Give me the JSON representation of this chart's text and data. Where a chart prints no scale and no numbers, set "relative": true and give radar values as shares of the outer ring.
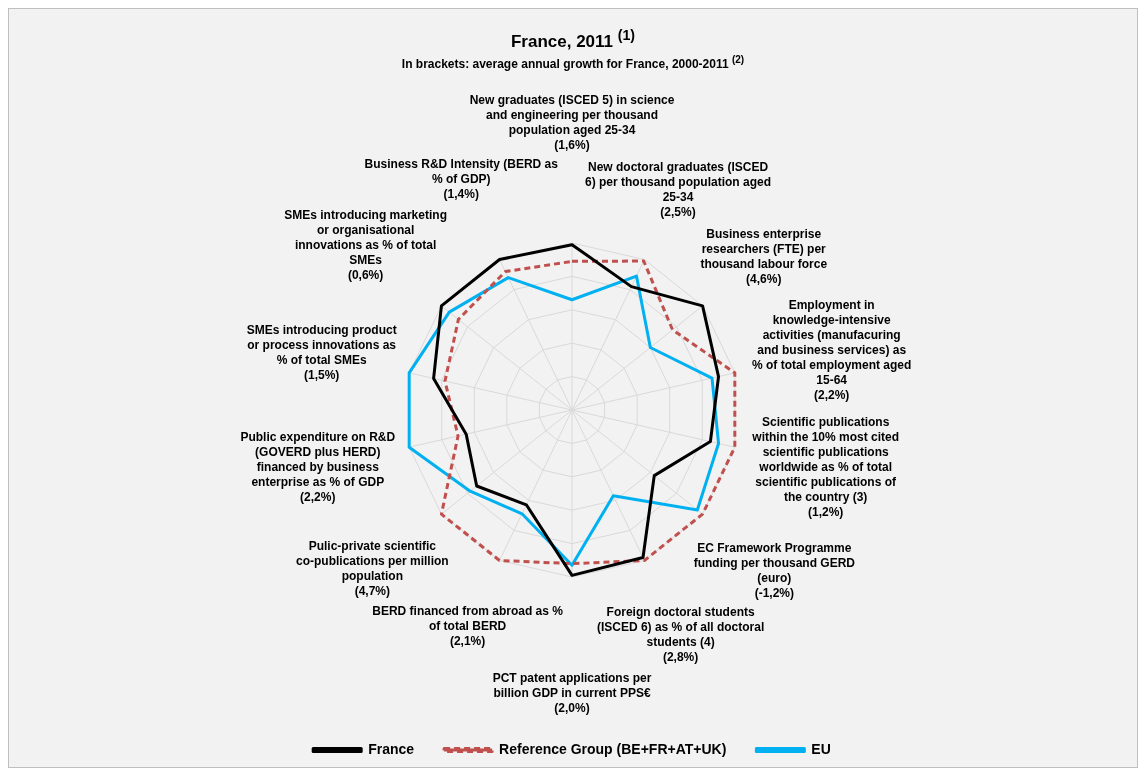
{
  "chart_data": {
    "type": "radar",
    "title": "France, 2011 $^{(1)}$",
    "subtitle": "In brackets: average annual growth for France, 2000-2011 $^{(2)}$",
    "relative": true,
    "grid": true,
    "legend": "bottom",
    "marker": "none",
    "categories": [
      "New graduates (ISCED 5) in science and engineering per thousand population aged 25-34 (1,6%)",
      "New doctoral graduates (ISCED 6) per thousand population aged 25-34 (2,5%)",
      "Business enterprise researchers (FTE) per thousand labour force (4,6%)",
      "Employment in knowledge-intensive activities (manufacuring and business services) as % of total employment aged 15-64 (2,2%)",
      "Scientific publications within the 10% most cited scientific publications worldwide as % of total scientific publications of the country (3) (1,2%)",
      "EC Framework Programme funding per thousand GERD (euro) (-1,2%)",
      "Foreign doctoral students (ISCED 6) as % of all doctoral students (4) (2,8%)",
      "PCT patent applications per billion GDP in current PPS€ (2,0%)",
      "BERD financed from abroad as % of total BERD (2,1%)",
      "Pulic-private scientific co-publications per million population (4,7%)",
      "Public expenditure on R&D (GOVERD plus HERD) financed by business enterprise as % of GDP (2,2%)",
      "SMEs introducing product or process innovations as % of total SMEs (1,5%)",
      "SMEs introducing marketing or organisational innovations as % of total SMEs (0,6%)",
      "Business R&D Intensity (BERD as % of GDP) (1,4%)"
    ],
    "series": [
      {
        "name": "France",
        "color": "#000000",
        "line_style": "solid",
        "values": [
          0.99,
          0.82,
          1.0,
          0.9,
          0.85,
          0.63,
          0.98,
          0.99,
          0.63,
          0.73,
          0.65,
          0.85,
          1.0,
          1.0
        ]
      },
      {
        "name": "Reference Group (BE+FR+AT+UK)",
        "color": "#c0504d",
        "line_style": "dashed",
        "values": [
          0.89,
          0.99,
          0.77,
          1.0,
          1.0,
          1.0,
          1.0,
          0.92,
          1.0,
          1.0,
          0.7,
          0.78,
          0.87,
          0.92
        ]
      },
      {
        "name": "EU",
        "color": "#00b0f0",
        "line_style": "solid",
        "values": [
          0.66,
          0.89,
          0.6,
          0.86,
          0.9,
          0.96,
          0.57,
          0.93,
          0.69,
          0.78,
          1.0,
          1.0,
          0.94,
          0.88
        ]
      }
    ]
  }
}
